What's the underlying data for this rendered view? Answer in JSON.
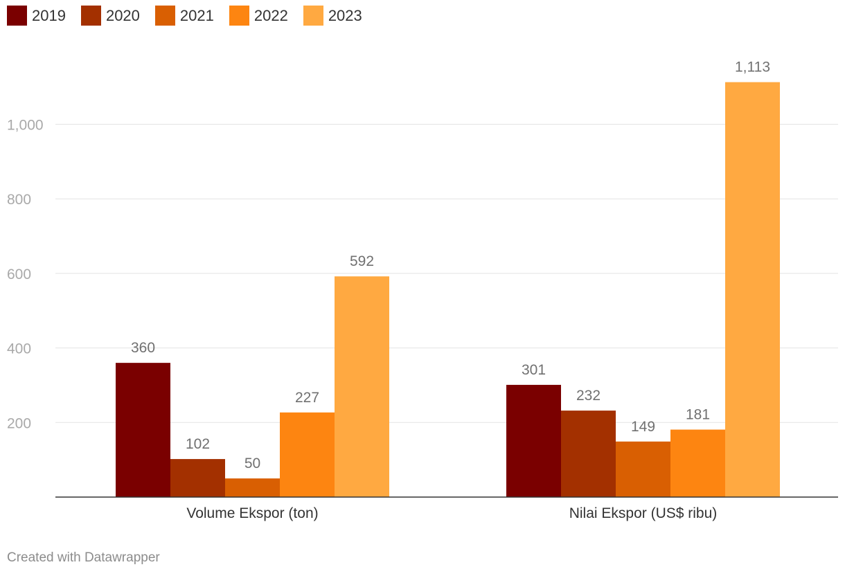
{
  "chart_data": {
    "type": "bar",
    "categories": [
      "Volume Ekspor (ton)",
      "Nilai Ekspor (US$ ribu)"
    ],
    "series": [
      {
        "name": "2019",
        "color": "#7a0000",
        "values": [
          360,
          301
        ],
        "labels": [
          "360",
          "301"
        ]
      },
      {
        "name": "2020",
        "color": "#a33000",
        "values": [
          102,
          232
        ],
        "labels": [
          "102",
          "232"
        ]
      },
      {
        "name": "2021",
        "color": "#d95f02",
        "values": [
          50,
          149
        ],
        "labels": [
          "50",
          "149"
        ]
      },
      {
        "name": "2022",
        "color": "#fd8511",
        "values": [
          227,
          181
        ],
        "labels": [
          "227",
          "181"
        ]
      },
      {
        "name": "2023",
        "color": "#ffa941",
        "values": [
          592,
          1113
        ],
        "labels": [
          "592",
          "1,113"
        ]
      }
    ],
    "yticks": [
      {
        "value": 200,
        "label": "200"
      },
      {
        "value": 400,
        "label": "400"
      },
      {
        "value": 600,
        "label": "600"
      },
      {
        "value": 800,
        "label": "800"
      },
      {
        "value": 1000,
        "label": "1,000"
      }
    ],
    "ylim": [
      0,
      1150
    ],
    "grid": true,
    "legend_position": "top-left"
  },
  "footer": "Created with Datawrapper"
}
